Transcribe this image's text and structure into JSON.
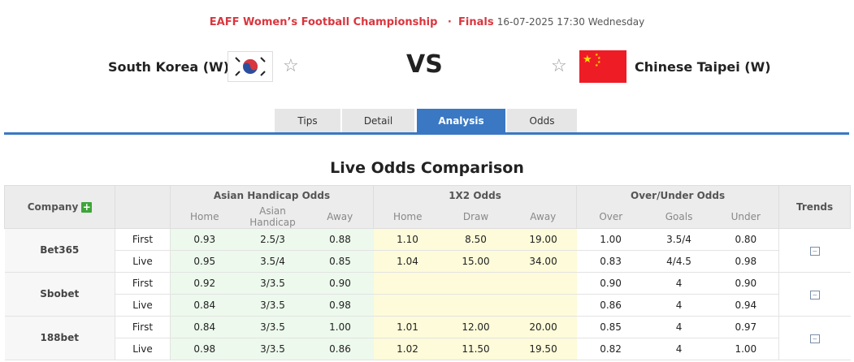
{
  "match": {
    "league": "EAFF Women’s Football Championship",
    "separator": "·",
    "stage": "Finals",
    "datetime": "16-07-2025 17:30 Wednesday",
    "home": "South Korea (W)",
    "away": "Chinese Taipei (W)",
    "vs": "VS"
  },
  "tabs": [
    {
      "label": "Tips"
    },
    {
      "label": "Detail"
    },
    {
      "label": "Analysis",
      "active": true
    },
    {
      "label": "Odds"
    }
  ],
  "colors": {
    "accent": "#3a78c3",
    "league": "#d9363e",
    "ah_bg": "#edf9ec",
    "x12_bg": "#fdfbd9"
  },
  "section_title": "Live Odds Comparison",
  "table": {
    "headers": {
      "company": "Company",
      "ah": "Asian Handicap Odds",
      "x12": "1X2 Odds",
      "ou": "Over/Under Odds",
      "trends": "Trends"
    },
    "sub": {
      "ah": [
        "Home",
        "Asian Handicap",
        "Away"
      ],
      "x12": [
        "Home",
        "Draw",
        "Away"
      ],
      "ou": [
        "Over",
        "Goals",
        "Under"
      ]
    },
    "companies": [
      {
        "name": "Bet365",
        "rows": [
          {
            "type": "First",
            "ah": [
              "0.93",
              "2.5/3",
              "0.88"
            ],
            "x12": [
              "1.10",
              "8.50",
              "19.00"
            ],
            "ou": [
              "1.00",
              "3.5/4",
              "0.80"
            ]
          },
          {
            "type": "Live",
            "ah": [
              "0.95",
              "3.5/4",
              "0.85"
            ],
            "x12": [
              "1.04",
              "15.00",
              "34.00"
            ],
            "ou": [
              "0.83",
              "4/4.5",
              "0.98"
            ]
          }
        ]
      },
      {
        "name": "Sbobet",
        "rows": [
          {
            "type": "First",
            "ah": [
              "0.92",
              "3/3.5",
              "0.90"
            ],
            "x12": [
              "",
              "",
              ""
            ],
            "ou": [
              "0.90",
              "4",
              "0.90"
            ]
          },
          {
            "type": "Live",
            "ah": [
              "0.84",
              "3/3.5",
              "0.98"
            ],
            "x12": [
              "",
              "",
              ""
            ],
            "ou": [
              "0.86",
              "4",
              "0.94"
            ]
          }
        ]
      },
      {
        "name": "188bet",
        "rows": [
          {
            "type": "First",
            "ah": [
              "0.84",
              "3/3.5",
              "1.00"
            ],
            "x12": [
              "1.01",
              "12.00",
              "20.00"
            ],
            "ou": [
              "0.85",
              "4",
              "0.97"
            ]
          },
          {
            "type": "Live",
            "ah": [
              "0.98",
              "3/3.5",
              "0.86"
            ],
            "x12": [
              "1.02",
              "11.50",
              "19.50"
            ],
            "ou": [
              "0.82",
              "4",
              "1.00"
            ]
          }
        ]
      }
    ]
  }
}
